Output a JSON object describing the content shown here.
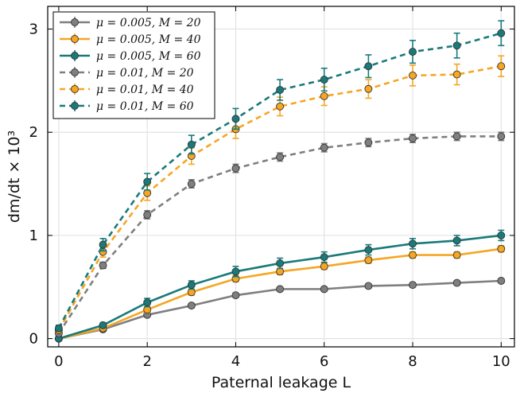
{
  "chart_data": {
    "type": "line",
    "x": [
      0,
      1,
      2,
      3,
      4,
      5,
      6,
      7,
      8,
      9,
      10
    ],
    "xlabel": "Paternal leakage L",
    "ylabel": "dm/dt × 10³",
    "xlim": [
      -0.25,
      10.3
    ],
    "ylim": [
      -0.08,
      3.22
    ],
    "xticks": [
      0,
      2,
      4,
      6,
      8,
      10
    ],
    "yticks": [
      0,
      1,
      2,
      3
    ],
    "grid": true,
    "legend_position": "top-left",
    "series": [
      {
        "name": "μ = 0.005, M = 20",
        "color": "#7f7f7f",
        "linestyle": "solid",
        "values": [
          0.0,
          0.09,
          0.23,
          0.32,
          0.42,
          0.48,
          0.48,
          0.51,
          0.52,
          0.54,
          0.56
        ],
        "errors": [
          0.01,
          0.01,
          0.02,
          0.02,
          0.02,
          0.02,
          0.02,
          0.02,
          0.02,
          0.02,
          0.02
        ]
      },
      {
        "name": "μ = 0.005, M = 40",
        "color": "#f5a623",
        "linestyle": "solid",
        "values": [
          0.0,
          0.1,
          0.28,
          0.45,
          0.58,
          0.65,
          0.7,
          0.76,
          0.81,
          0.81,
          0.87
        ],
        "errors": [
          0.01,
          0.02,
          0.03,
          0.03,
          0.03,
          0.03,
          0.03,
          0.03,
          0.03,
          0.03,
          0.03
        ]
      },
      {
        "name": "μ = 0.005, M = 60",
        "color": "#1a7a7a",
        "linestyle": "solid",
        "values": [
          0.0,
          0.13,
          0.35,
          0.52,
          0.65,
          0.73,
          0.79,
          0.86,
          0.92,
          0.95,
          1.0
        ],
        "errors": [
          0.01,
          0.02,
          0.04,
          0.04,
          0.05,
          0.05,
          0.05,
          0.05,
          0.05,
          0.05,
          0.05
        ]
      },
      {
        "name": "μ = 0.01, M = 20",
        "color": "#7f7f7f",
        "linestyle": "dashed",
        "values": [
          0.05,
          0.71,
          1.2,
          1.5,
          1.65,
          1.76,
          1.85,
          1.9,
          1.94,
          1.96,
          1.96
        ],
        "errors": [
          0.02,
          0.03,
          0.04,
          0.04,
          0.04,
          0.04,
          0.04,
          0.04,
          0.04,
          0.04,
          0.04
        ]
      },
      {
        "name": "μ = 0.01, M = 40",
        "color": "#f5a623",
        "linestyle": "dashed",
        "values": [
          0.08,
          0.84,
          1.41,
          1.77,
          2.03,
          2.25,
          2.35,
          2.42,
          2.55,
          2.56,
          2.64
        ],
        "errors": [
          0.03,
          0.05,
          0.07,
          0.08,
          0.09,
          0.09,
          0.09,
          0.09,
          0.1,
          0.1,
          0.1
        ]
      },
      {
        "name": "μ = 0.01, M = 60",
        "color": "#1a7a7a",
        "linestyle": "dashed",
        "values": [
          0.1,
          0.91,
          1.52,
          1.88,
          2.13,
          2.41,
          2.51,
          2.64,
          2.78,
          2.84,
          2.96
        ],
        "errors": [
          0.03,
          0.06,
          0.08,
          0.09,
          0.1,
          0.1,
          0.11,
          0.11,
          0.11,
          0.12,
          0.12
        ]
      }
    ]
  }
}
